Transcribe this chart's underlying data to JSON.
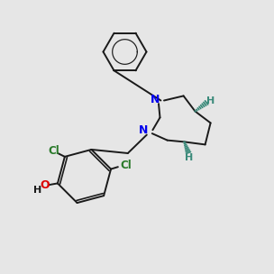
{
  "background_color": "#e6e6e6",
  "bond_color": "#1a1a1a",
  "N_color": "#0000ee",
  "O_color": "#dd0000",
  "Cl_color": "#2a7a2a",
  "H_stereo_color": "#3a8a7a",
  "figsize": [
    3.0,
    3.0
  ],
  "dpi": 100,
  "lw": 1.4,
  "lw_thin": 1.0,
  "font_size_atom": 9,
  "font_size_H": 8
}
